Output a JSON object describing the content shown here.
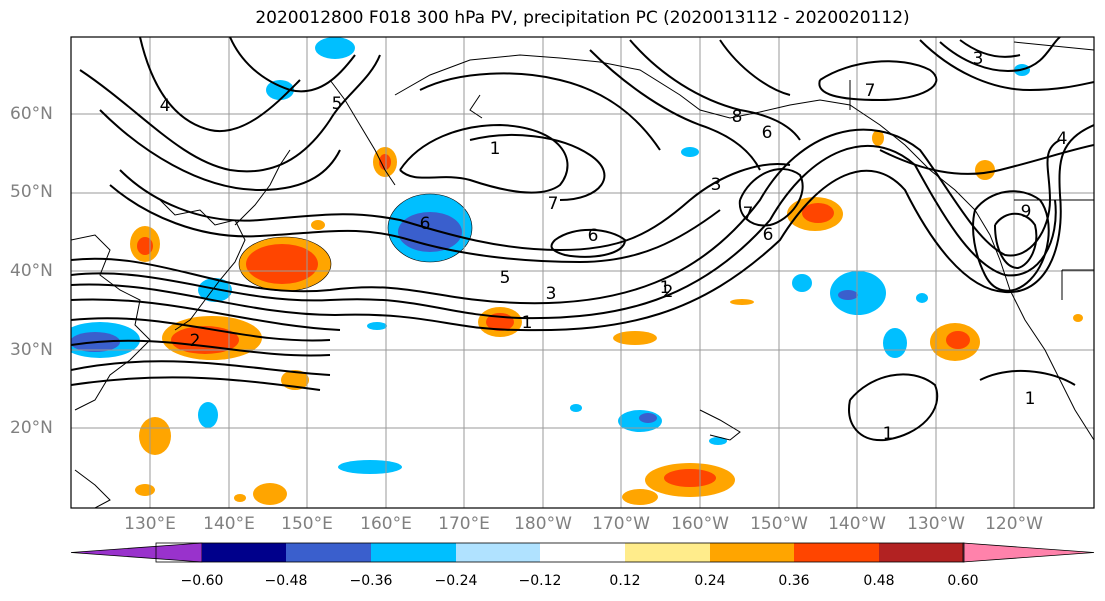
{
  "title": "2020012800 F018 300 hPa PV, precipitation PC (2020013112 - 2020020112)",
  "lat_labels": [
    "60°N",
    "50°N",
    "40°N",
    "30°N",
    "20°N"
  ],
  "lon_labels": [
    "130°E",
    "140°E",
    "150°E",
    "160°E",
    "170°E",
    "180°W",
    "170°W",
    "160°W",
    "150°W",
    "140°W",
    "130°W",
    "120°W"
  ],
  "colorbar": {
    "ticks": [
      "−0.60",
      "−0.48",
      "−0.36",
      "−0.24",
      "−0.12",
      "0.12",
      "0.24",
      "0.36",
      "0.48",
      "0.60"
    ],
    "colors": [
      "#9932CC",
      "#00008B",
      "#3A5FCD",
      "#00BFFF",
      "#B0E2FF",
      "#FFFFFF",
      "#FFEC8B",
      "#FFA500",
      "#FF4500",
      "#B22222",
      "#FF82AB"
    ]
  },
  "contour_labels": [
    {
      "text": "1"
    },
    {
      "text": "1"
    },
    {
      "text": "1"
    },
    {
      "text": "1"
    },
    {
      "text": "1"
    },
    {
      "text": "2"
    },
    {
      "text": "2"
    },
    {
      "text": "3"
    },
    {
      "text": "3"
    },
    {
      "text": "3"
    },
    {
      "text": "4"
    },
    {
      "text": "4"
    },
    {
      "text": "5"
    },
    {
      "text": "5"
    },
    {
      "text": "6"
    },
    {
      "text": "6"
    },
    {
      "text": "6"
    },
    {
      "text": "6"
    },
    {
      "text": "7"
    },
    {
      "text": "7"
    },
    {
      "text": "7"
    },
    {
      "text": "8"
    },
    {
      "text": "9"
    }
  ]
}
